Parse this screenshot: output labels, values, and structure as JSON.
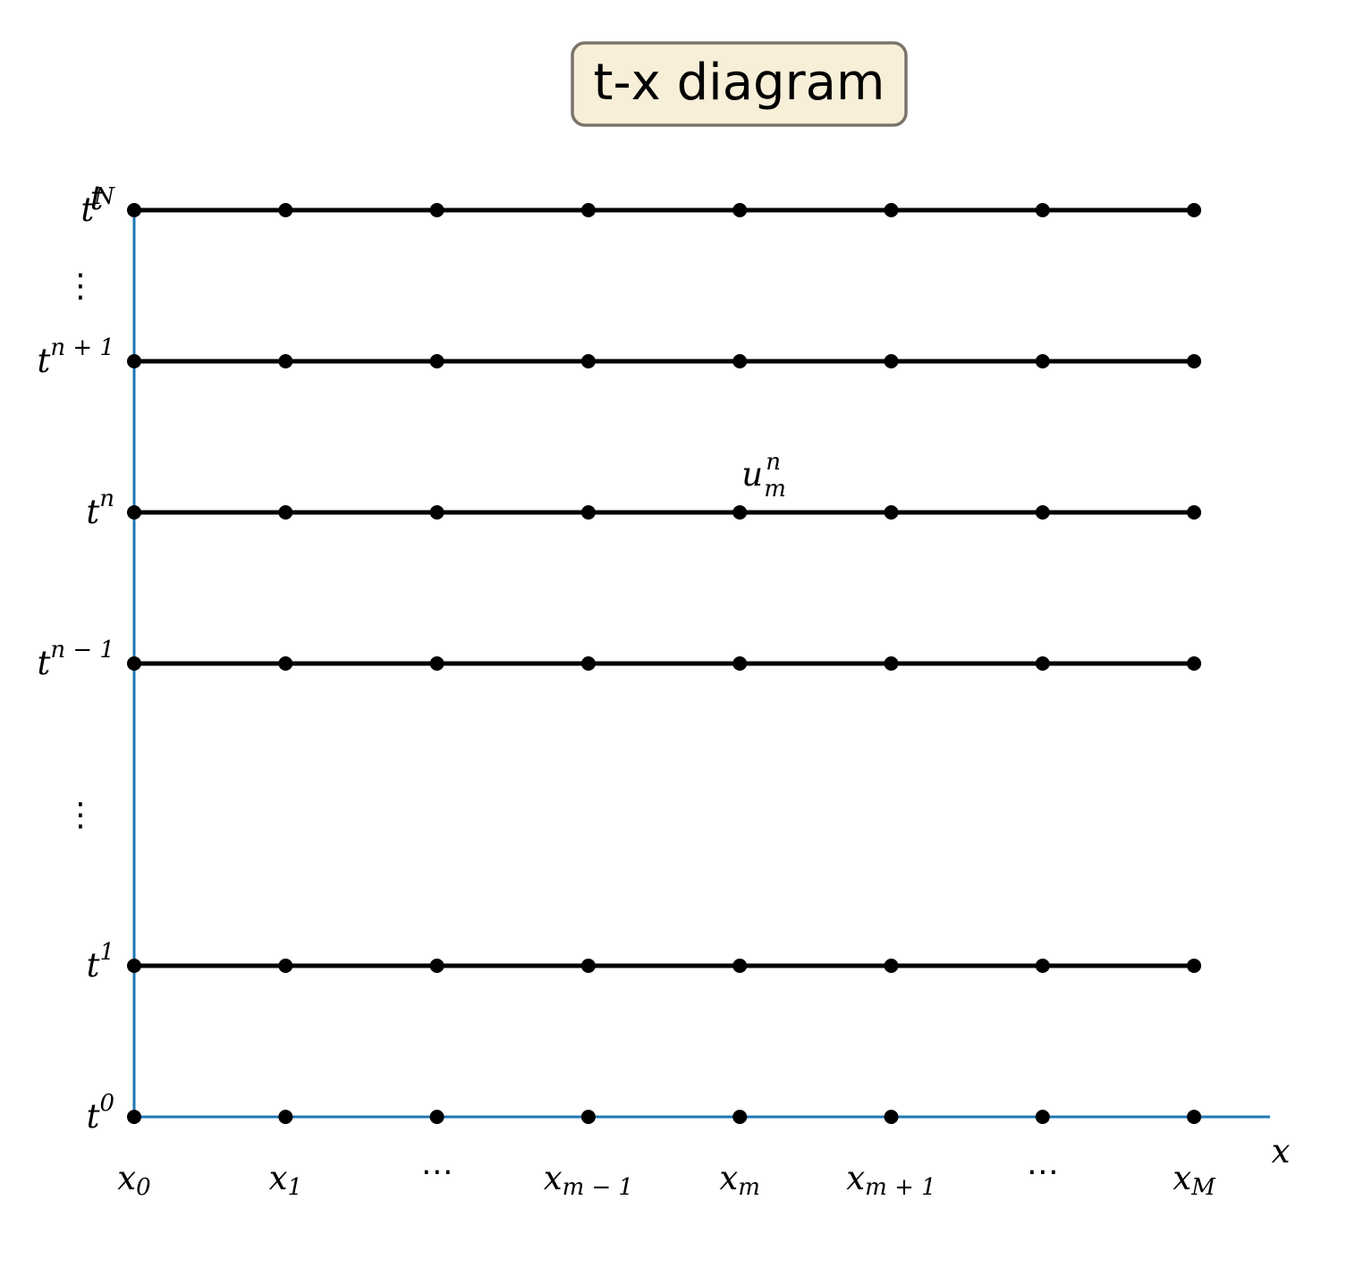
{
  "title": "t-x diagram",
  "axis": {
    "t_label": "t",
    "x_label": "x",
    "axis_color": "#1f77b4"
  },
  "colors": {
    "title_box_fill": "#f8efd9",
    "title_box_stroke": "#7b746c",
    "grid": "#000000"
  },
  "x_ticks": [
    {
      "base": "x",
      "sub": "0"
    },
    {
      "base": "x",
      "sub": "1"
    },
    {
      "text": "⋯"
    },
    {
      "base": "x",
      "sub": "m − 1"
    },
    {
      "base": "x",
      "sub": "m"
    },
    {
      "base": "x",
      "sub": "m + 1"
    },
    {
      "text": "⋯"
    },
    {
      "base": "x",
      "sub": "M"
    }
  ],
  "t_ticks": [
    {
      "level": 0,
      "base": "t",
      "sup": "0"
    },
    {
      "level": 1,
      "base": "t",
      "sup": "1"
    },
    {
      "level": 2,
      "text": "⋮"
    },
    {
      "level": 3,
      "base": "t",
      "sup": "n − 1"
    },
    {
      "level": 4,
      "base": "t",
      "sup": "n"
    },
    {
      "level": 5,
      "base": "t",
      "sup": "n + 1"
    },
    {
      "level": 5.5,
      "text": "⋮"
    },
    {
      "level": 6,
      "base": "t",
      "sup": "N"
    }
  ],
  "grid_rows": [
    0,
    1,
    3,
    4,
    5,
    6
  ],
  "grid_columns": 8,
  "annotation": {
    "base": "u",
    "sup": "n",
    "sub": "m",
    "column": 4,
    "row": 4
  }
}
